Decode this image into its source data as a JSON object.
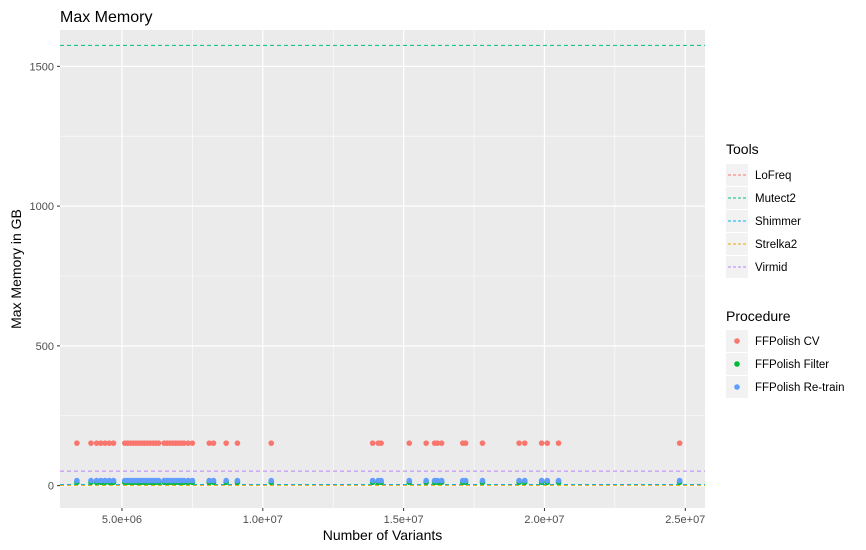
{
  "chart_data": {
    "type": "scatter",
    "title": "Max Memory",
    "xlabel": "Number of Variants",
    "ylabel": "Max Memory in GB",
    "xlim": [
      2800000,
      25700000
    ],
    "ylim": [
      -80,
      1630
    ],
    "x_ticks": [
      5000000,
      10000000,
      15000000,
      20000000,
      25000000
    ],
    "x_tick_labels": [
      "5.0e+06",
      "1.0e+07",
      "1.5e+07",
      "2.0e+07",
      "2.5e+07"
    ],
    "y_ticks": [
      0,
      500,
      1000,
      1500
    ],
    "y_tick_labels": [
      "0",
      "500",
      "1000",
      "1500"
    ],
    "grid": true,
    "legend_position": "right",
    "hlines": [
      {
        "name": "LoFreq",
        "y": 3,
        "color": "#F8766D"
      },
      {
        "name": "Mutect2",
        "y": 1575,
        "color": "#00BF7D"
      },
      {
        "name": "Shimmer",
        "y": 4,
        "color": "#00B0F6"
      },
      {
        "name": "Strelka2",
        "y": 1,
        "color": "#E7A800"
      },
      {
        "name": "Virmid",
        "y": 52,
        "color": "#B983FF"
      }
    ],
    "legend_tools_title": "Tools",
    "legend_tools": [
      {
        "label": "LoFreq",
        "color": "#F8766D"
      },
      {
        "label": "Mutect2",
        "color": "#00BF7D"
      },
      {
        "label": "Shimmer",
        "color": "#00B0F6"
      },
      {
        "label": "Strelka2",
        "color": "#E7A800"
      },
      {
        "label": "Virmid",
        "color": "#B983FF"
      }
    ],
    "legend_procedure_title": "Procedure",
    "series": [
      {
        "name": "FFPolish CV",
        "color": "#F8766D",
        "y": 152,
        "x": [
          3400000,
          3900000,
          4100000,
          4250000,
          4400000,
          4550000,
          4700000,
          5100000,
          5200000,
          5300000,
          5400000,
          5500000,
          5600000,
          5700000,
          5800000,
          5900000,
          6000000,
          6100000,
          6200000,
          6300000,
          6500000,
          6600000,
          6700000,
          6800000,
          6900000,
          7000000,
          7100000,
          7200000,
          7350000,
          7500000,
          8100000,
          8250000,
          8700000,
          9100000,
          10300000,
          13900000,
          14100000,
          14200000,
          15200000,
          15800000,
          16100000,
          16200000,
          16350000,
          17100000,
          17200000,
          17800000,
          19100000,
          19300000,
          19900000,
          20100000,
          20500000,
          24800000
        ]
      },
      {
        "name": "FFPolish Filter",
        "color": "#00BA38",
        "y": 12,
        "x": [
          3400000,
          3900000,
          4100000,
          4250000,
          4400000,
          4550000,
          4700000,
          5100000,
          5200000,
          5300000,
          5400000,
          5500000,
          5600000,
          5700000,
          5800000,
          5900000,
          6000000,
          6100000,
          6200000,
          6300000,
          6500000,
          6600000,
          6700000,
          6800000,
          6900000,
          7000000,
          7100000,
          7200000,
          7350000,
          7500000,
          8100000,
          8250000,
          8700000,
          9100000,
          10300000,
          13900000,
          14100000,
          14200000,
          15200000,
          15800000,
          16100000,
          16200000,
          16350000,
          17100000,
          17200000,
          17800000,
          19100000,
          19300000,
          19900000,
          20100000,
          20500000,
          24800000
        ]
      },
      {
        "name": "FFPolish Re-train",
        "color": "#619CFF",
        "y": 18,
        "x": [
          3400000,
          3900000,
          4100000,
          4250000,
          4400000,
          4550000,
          4700000,
          5100000,
          5200000,
          5300000,
          5400000,
          5500000,
          5600000,
          5700000,
          5800000,
          5900000,
          6000000,
          6100000,
          6200000,
          6300000,
          6500000,
          6600000,
          6700000,
          6800000,
          6900000,
          7000000,
          7100000,
          7200000,
          7350000,
          7500000,
          8100000,
          8250000,
          8700000,
          9100000,
          10300000,
          13900000,
          14100000,
          14200000,
          15200000,
          15800000,
          16100000,
          16200000,
          16350000,
          17100000,
          17200000,
          17800000,
          19100000,
          19300000,
          19900000,
          20100000,
          20500000,
          24800000
        ]
      }
    ]
  }
}
